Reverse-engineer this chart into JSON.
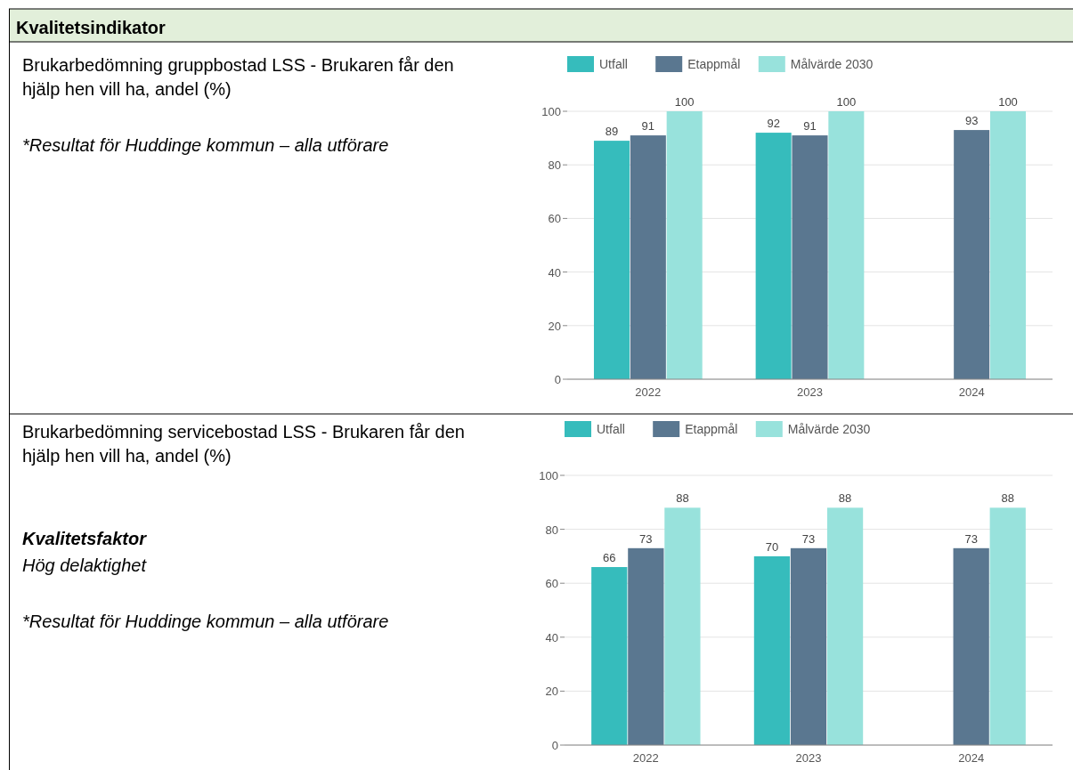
{
  "chart_data": [
    {
      "type": "bar",
      "title": "Brukarbedömning gruppbostad LSS - Brukaren får den hjälp hen vill ha, andel (%)",
      "annotations": [
        "Kvalitetsindikator",
        "*Resultat för Huddinge kommun – alla utförare"
      ],
      "categories": [
        "2022",
        "2023",
        "2024"
      ],
      "series": [
        {
          "name": "Utfall",
          "color": "#36bcbc",
          "values": [
            89,
            92,
            null
          ]
        },
        {
          "name": "Etappmål",
          "color": "#5a7790",
          "values": [
            91,
            91,
            93
          ]
        },
        {
          "name": "Målvärde 2030",
          "color": "#98e2dc",
          "values": [
            100,
            100,
            100
          ]
        }
      ],
      "ylim": [
        0,
        100
      ],
      "yticks": [
        0,
        20,
        40,
        60,
        80,
        100
      ],
      "grid": "y",
      "legend": "top",
      "data_labels": true
    },
    {
      "type": "bar",
      "title": "Brukarbedömning servicebostad LSS - Brukaren får den hjälp hen vill ha, andel (%)",
      "annotations": [
        "Kvalitetsfaktor",
        "Hög delaktighet",
        "*Resultat för Huddinge kommun – alla utförare"
      ],
      "categories": [
        "2022",
        "2023",
        "2024"
      ],
      "series": [
        {
          "name": "Utfall",
          "color": "#36bcbc",
          "values": [
            66,
            70,
            null
          ]
        },
        {
          "name": "Etappmål",
          "color": "#5a7790",
          "values": [
            73,
            73,
            73
          ]
        },
        {
          "name": "Målvärde 2030",
          "color": "#98e2dc",
          "values": [
            88,
            88,
            88
          ]
        }
      ],
      "ylim": [
        0,
        100
      ],
      "yticks": [
        0,
        20,
        40,
        60,
        80,
        100
      ],
      "grid": "y",
      "legend": "top",
      "data_labels": true
    }
  ]
}
